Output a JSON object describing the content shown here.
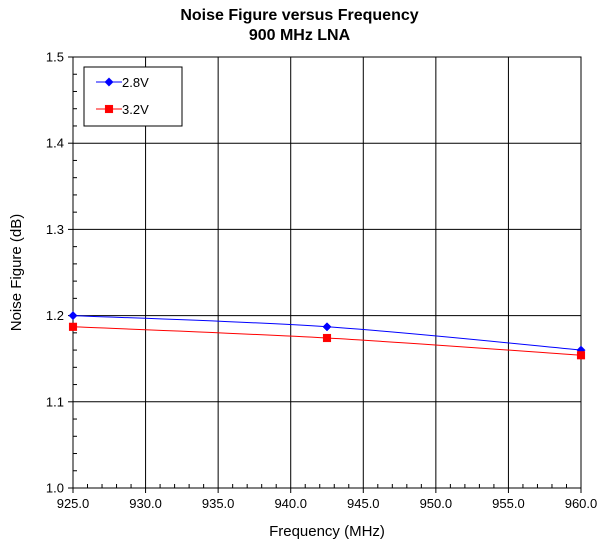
{
  "chart_data": {
    "type": "line",
    "title": "Noise Figure versus Frequency",
    "subtitle": "900 MHz LNA",
    "xlabel": "Frequency (MHz)",
    "ylabel": "Noise Figure (dB)",
    "xlim": [
      925.0,
      960.0
    ],
    "ylim": [
      1.0,
      1.5
    ],
    "x_ticks": [
      "925.0",
      "930.0",
      "935.0",
      "940.0",
      "945.0",
      "950.0",
      "955.0",
      "960.0"
    ],
    "y_ticks": [
      "1.0",
      "1.1",
      "1.2",
      "1.3",
      "1.4",
      "1.5"
    ],
    "grid": true,
    "legend_position": "top-left",
    "series": [
      {
        "name": "2.8V",
        "color": "#0000ff",
        "marker": "diamond",
        "x": [
          925.0,
          942.5,
          960.0
        ],
        "y": [
          1.2,
          1.187,
          1.16
        ]
      },
      {
        "name": "3.2V",
        "color": "#ff0000",
        "marker": "square",
        "x": [
          925.0,
          942.5,
          960.0
        ],
        "y": [
          1.187,
          1.174,
          1.154
        ]
      }
    ]
  }
}
